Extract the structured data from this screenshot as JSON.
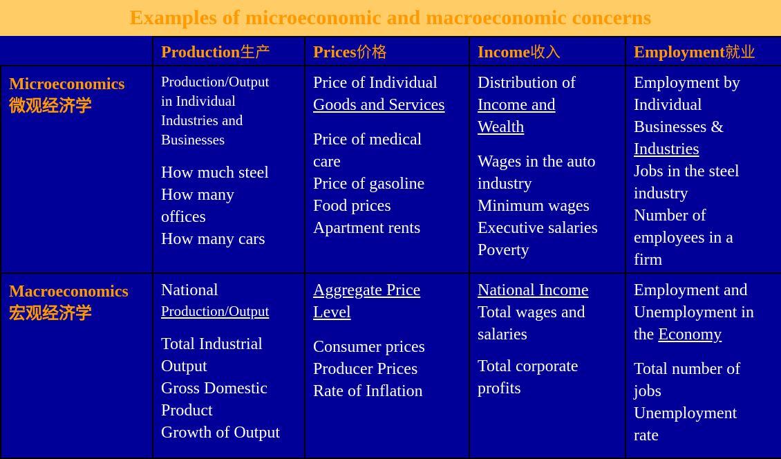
{
  "title": "Examples of microeconomic and macroeconomic concerns",
  "columns": [
    {
      "en": "Production",
      "zh": "生产"
    },
    {
      "en": "Prices",
      "zh": "价格"
    },
    {
      "en": "Income",
      "zh": "收入"
    },
    {
      "en": "Employment",
      "zh": "就业"
    }
  ],
  "rows": {
    "micro": {
      "label_en": "Microeconomics",
      "label_zh": "微观经济学",
      "production": {
        "intro": [
          "Production/Output",
          "in Individual",
          "Industries and",
          "Businesses"
        ],
        "items": [
          "How much steel",
          "How many",
          "offices",
          "How many cars"
        ]
      },
      "prices": {
        "intro": [
          "Price of Individual",
          "Goods and Services"
        ],
        "items": [
          "Price of medical",
          "care",
          "Price of gasoline",
          "Food prices",
          "Apartment rents"
        ]
      },
      "income": {
        "intro": [
          "Distribution of",
          "Income and",
          "Wealth"
        ],
        "items": [
          "Wages in the auto",
          "industry",
          "Minimum wages",
          "Executive salaries",
          "Poverty"
        ]
      },
      "employment": {
        "intro": [
          "Employment by",
          "Individual",
          "Businesses &",
          "Industries"
        ],
        "items": [
          "Jobs in the steel",
          "industry",
          "Number of",
          "employees in a",
          "firm"
        ]
      }
    },
    "macro": {
      "label_en": "Macroeconomics",
      "label_zh": "宏观经济学",
      "production": {
        "intro": [
          "National",
          "Production/Output"
        ],
        "items": [
          "Total Industrial",
          "Output",
          "Gross Domestic",
          "Product",
          "Growth of Output"
        ]
      },
      "prices": {
        "intro": [
          "Aggregate Price",
          "Level"
        ],
        "items": [
          "Consumer prices",
          "Producer Prices",
          "Rate of Inflation"
        ]
      },
      "income": {
        "intro": [
          "National Income",
          "Total wages and",
          "salaries"
        ],
        "items": [
          "Total corporate",
          "profits"
        ]
      },
      "employment": {
        "intro": [
          "Employment and",
          "Unemployment in",
          "the ",
          "Economy"
        ],
        "items": [
          "Total number of",
          "jobs",
          "Unemployment",
          "rate"
        ]
      }
    }
  },
  "colors": {
    "background": "#000099",
    "title_bar": "#ffcc66",
    "accent": "#ff9900",
    "text": "#ffffff"
  }
}
